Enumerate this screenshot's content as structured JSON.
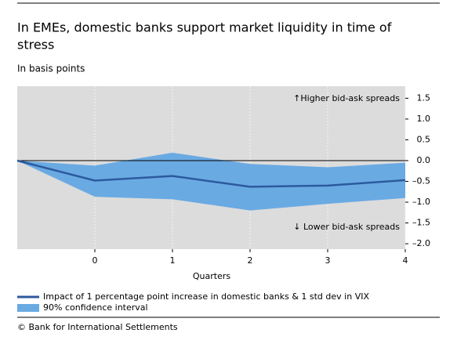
{
  "chart_data": {
    "type": "line_band",
    "title": [
      "In EMEs, domestic banks support market liquidity in time of",
      "stress"
    ],
    "subtitle": "In basis points",
    "x_label": "Quarters",
    "x": [
      -1,
      0,
      1,
      2,
      3,
      4
    ],
    "xlim": [
      -1,
      4
    ],
    "xticks": [
      0,
      1,
      2,
      3,
      4
    ],
    "ylim": [
      -2.13,
      1.79
    ],
    "yticks": [
      {
        "value": 1.5,
        "label": "1.5"
      },
      {
        "value": 1,
        "label": "1.0"
      },
      {
        "value": 0.5,
        "label": "0.5"
      },
      {
        "value": 0,
        "label": "0.0"
      },
      {
        "value": -0.5,
        "label": "–0.5"
      },
      {
        "value": -1,
        "label": "–1.0"
      },
      {
        "value": -1.5,
        "label": "–1.5"
      },
      {
        "value": -2,
        "label": "–2.0"
      }
    ],
    "grid": true,
    "series": [
      {
        "name": "Impact of 1 percentage point increase in domestic banks & 1 std dev in VIX",
        "color": "#2c5a9e",
        "values": [
          0,
          -0.48,
          -0.37,
          -0.63,
          -0.6,
          -0.47
        ]
      }
    ],
    "band": {
      "name": "90% confidence interval",
      "color": "#6aaae3",
      "upper": [
        0,
        -0.12,
        0.19,
        -0.08,
        -0.16,
        -0.05
      ],
      "lower": [
        0,
        -0.87,
        -0.93,
        -1.2,
        -1.04,
        -0.9
      ]
    },
    "annotations": [
      "↑Higher bid-ask spreads",
      "↓ Lower bid-ask spreads"
    ],
    "source": "© Bank for International Settlements"
  }
}
